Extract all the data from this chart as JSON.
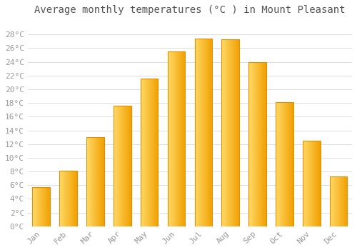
{
  "title": "Average monthly temperatures (°C ) in Mount Pleasant",
  "months": [
    "Jan",
    "Feb",
    "Mar",
    "Apr",
    "May",
    "Jun",
    "Jul",
    "Aug",
    "Sep",
    "Oct",
    "Nov",
    "Dec"
  ],
  "values": [
    5.7,
    8.1,
    13.0,
    17.6,
    21.6,
    25.5,
    27.4,
    27.3,
    24.0,
    18.1,
    12.5,
    7.3
  ],
  "bar_color_left": "#FFD966",
  "bar_color_right": "#F0A000",
  "bar_edge_color": "#E09000",
  "ylim": [
    0,
    30
  ],
  "yticks": [
    0,
    2,
    4,
    6,
    8,
    10,
    12,
    14,
    16,
    18,
    20,
    22,
    24,
    26,
    28
  ],
  "ytick_labels": [
    "0°C",
    "2°C",
    "4°C",
    "6°C",
    "8°C",
    "10°C",
    "12°C",
    "14°C",
    "16°C",
    "18°C",
    "20°C",
    "22°C",
    "24°C",
    "26°C",
    "28°C"
  ],
  "background_color": "#ffffff",
  "grid_color": "#dddddd",
  "title_fontsize": 10,
  "tick_fontsize": 8,
  "font_family": "monospace",
  "tick_color": "#999999",
  "title_color": "#555555"
}
